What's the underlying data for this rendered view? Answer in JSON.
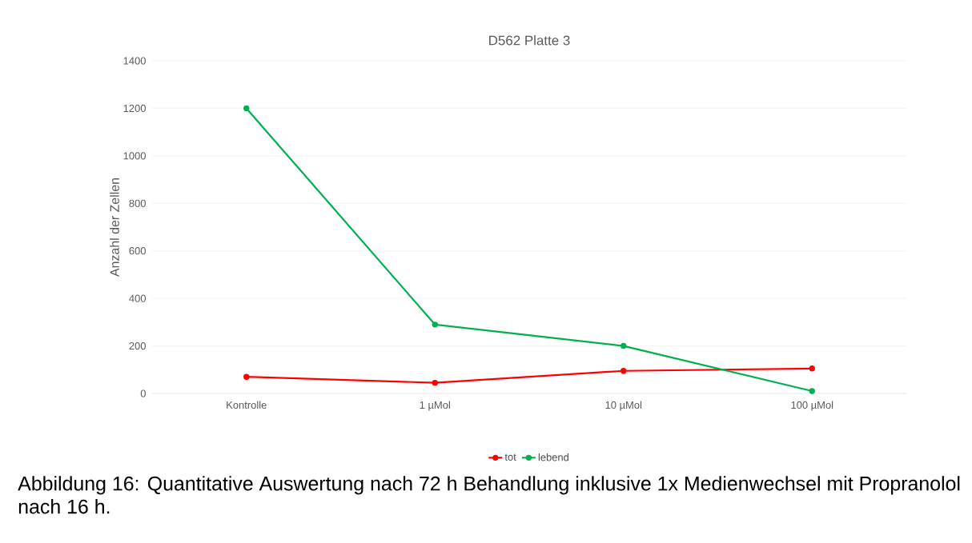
{
  "chart_data": {
    "type": "line",
    "title": "D562 Platte 3",
    "ylabel": "Anzahl der Zellen",
    "categories": [
      "Kontrolle",
      "1 µMol",
      "10 µMol",
      "100 µMol"
    ],
    "series": [
      {
        "name": "tot",
        "color": "#ff0000",
        "values": [
          70,
          45,
          95,
          105
        ]
      },
      {
        "name": "lebend",
        "color": "#00b050",
        "values": [
          1200,
          290,
          200,
          10
        ]
      }
    ],
    "ylim": [
      0,
      1400
    ],
    "yticks": [
      0,
      200,
      400,
      600,
      800,
      1000,
      1200,
      1400
    ],
    "grid": "y",
    "legend": "bottom",
    "marker": "circle",
    "line_style": "solid",
    "annotations": [
      "Abbildung 16: Quantitative Auswertung nach 72 h Behandlung inklusive 1x Medienwechsel mit Propranolol nach 16 h."
    ]
  }
}
